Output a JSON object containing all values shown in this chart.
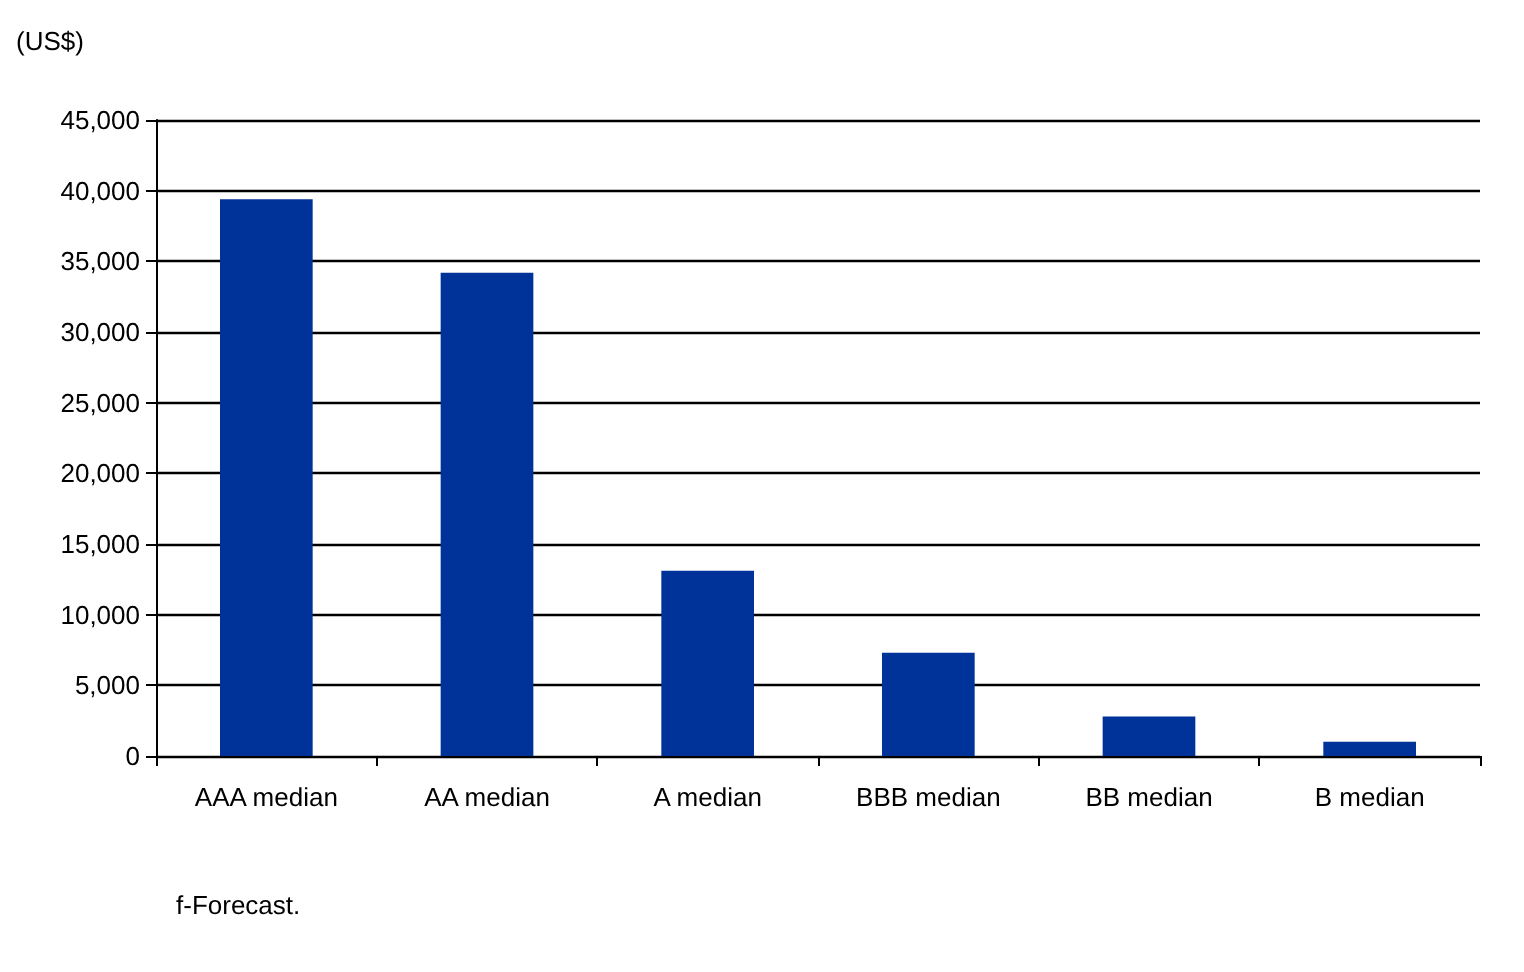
{
  "chart_data": {
    "type": "bar",
    "ylabel": "(US$)",
    "categories": [
      "AAA median",
      "AA median",
      "A median",
      "BBB median",
      "BB median",
      "B median"
    ],
    "values": [
      39400,
      34200,
      13100,
      7300,
      2800,
      1000
    ],
    "color": "#003399",
    "ylim": [
      0,
      45000
    ],
    "yticks": [
      0,
      {
        "value": 5000,
        "label": "5,000"
      },
      {
        "value": 10000,
        "label": "10,000"
      },
      {
        "value": 15000,
        "label": "15,000"
      },
      {
        "value": 20000,
        "label": "20,000"
      },
      {
        "value": 25000,
        "label": "25,000"
      },
      {
        "value": 30000,
        "label": "30,000"
      },
      {
        "value": 35000,
        "label": "35,000"
      },
      {
        "value": 40000,
        "label": "40,000"
      },
      {
        "value": 45000,
        "label": "45,000"
      }
    ],
    "grid": "y",
    "annotations": [
      "f-Forecast."
    ]
  }
}
